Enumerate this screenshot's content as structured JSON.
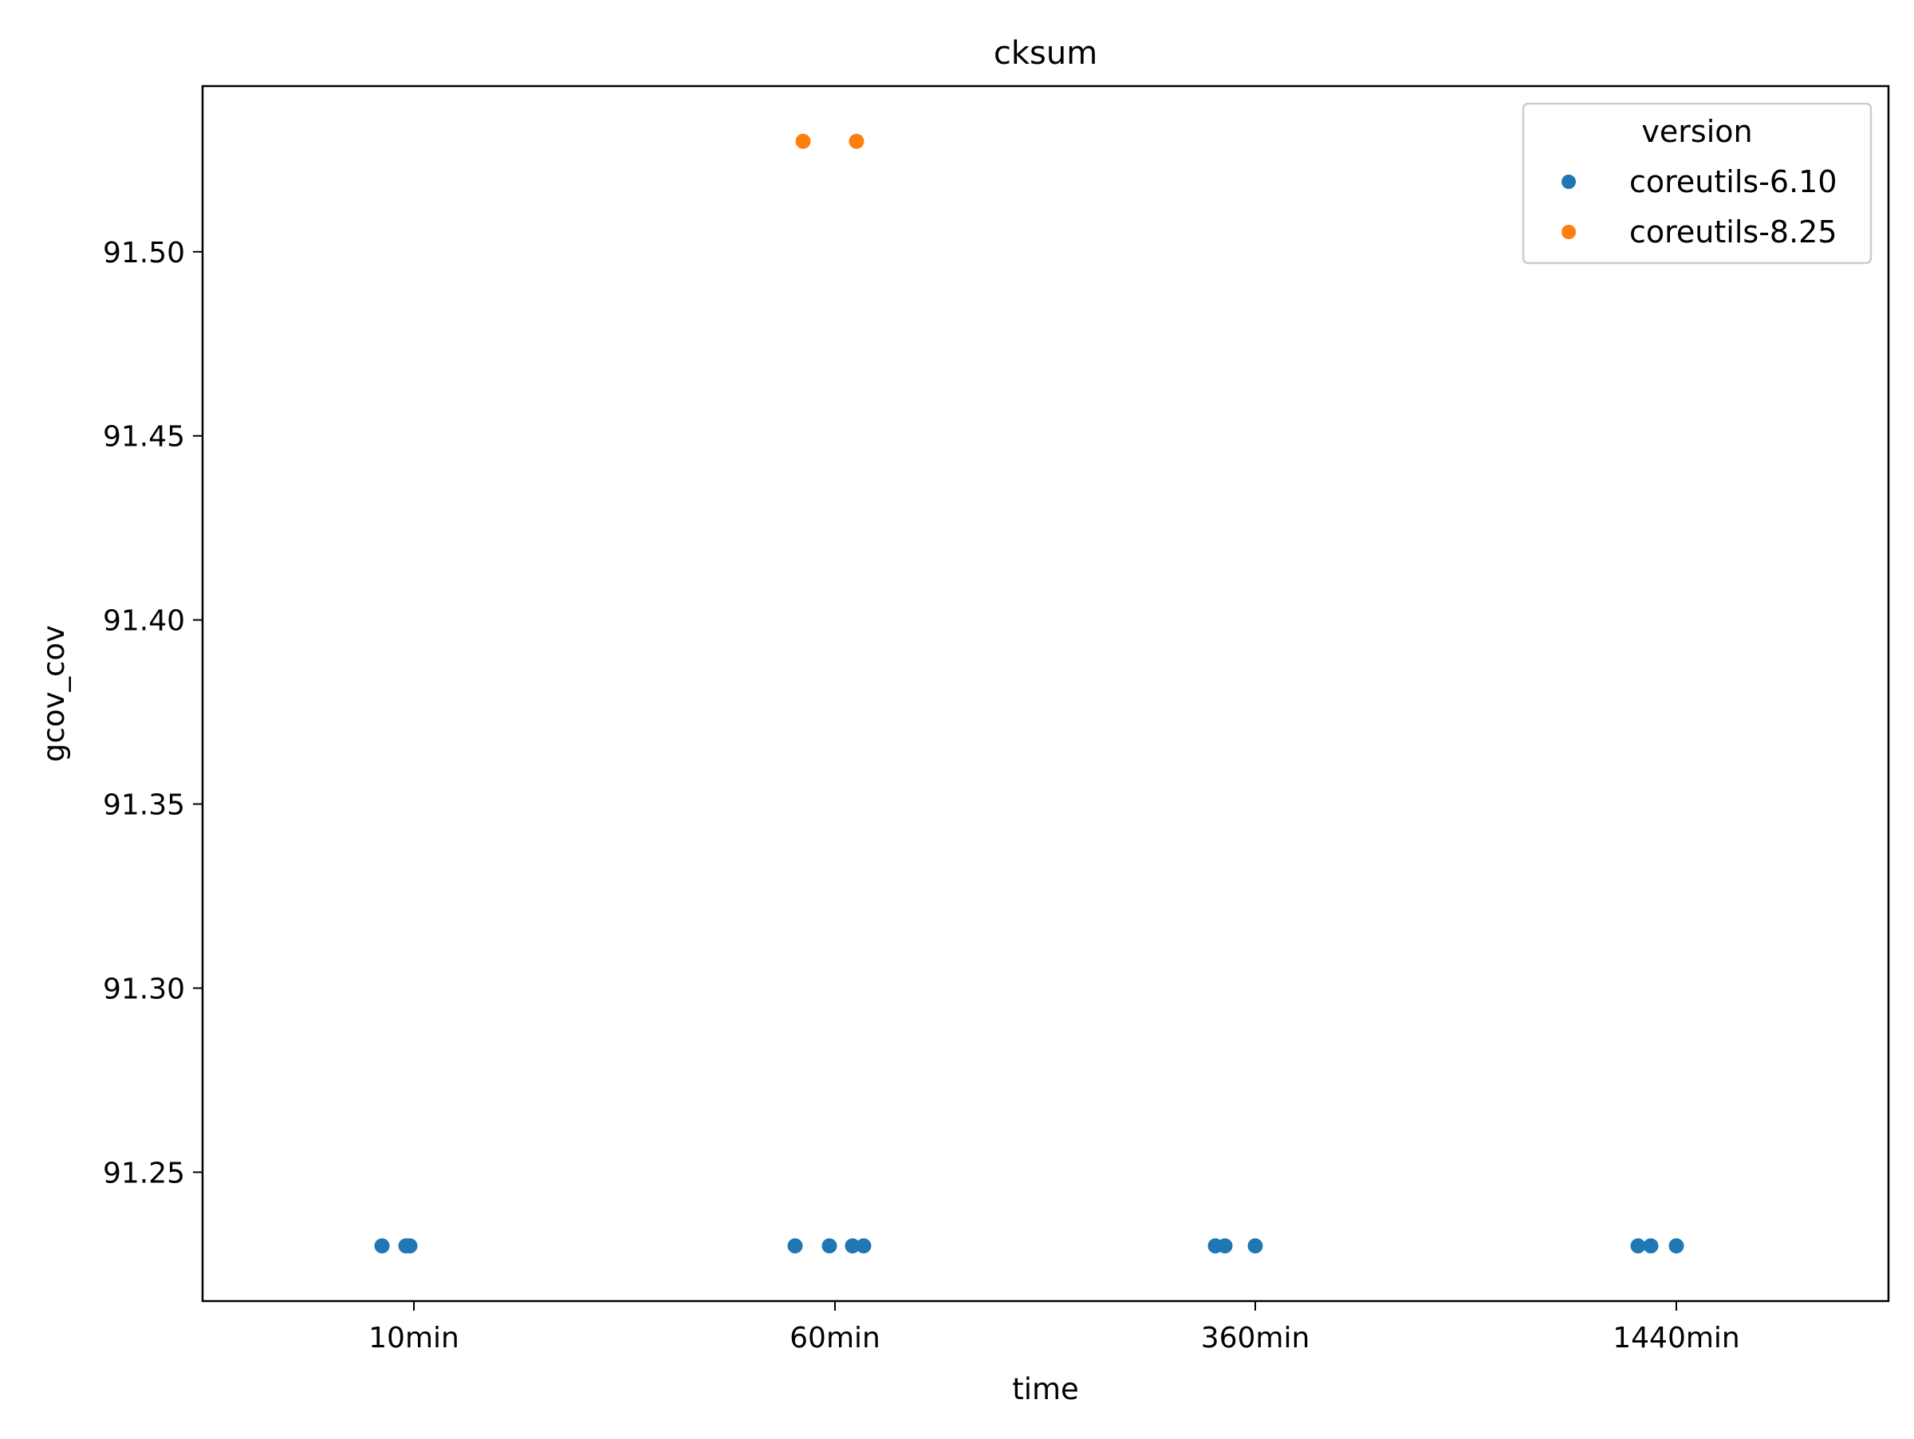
{
  "chart_data": {
    "type": "scatter",
    "title": "cksum",
    "xlabel": "time",
    "ylabel": "gcov_cov",
    "categories": [
      "10min",
      "60min",
      "360min",
      "1440min"
    ],
    "ylim": [
      91.215,
      91.545
    ],
    "yticks": [
      91.25,
      91.3,
      91.35,
      91.4,
      91.45,
      91.5
    ],
    "ytick_labels": [
      "91.25",
      "91.30",
      "91.35",
      "91.40",
      "91.45",
      "91.50"
    ],
    "grid": false,
    "legend": {
      "title": "version",
      "position": "top-right"
    },
    "series": [
      {
        "name": "coreutils-6.10",
        "color": "#1f77b4",
        "points": [
          {
            "x": "10min",
            "y": 91.23
          },
          {
            "x": "10min",
            "y": 91.23
          },
          {
            "x": "10min",
            "y": 91.23
          },
          {
            "x": "60min",
            "y": 91.23
          },
          {
            "x": "60min",
            "y": 91.23
          },
          {
            "x": "60min",
            "y": 91.23
          },
          {
            "x": "60min",
            "y": 91.23
          },
          {
            "x": "360min",
            "y": 91.23
          },
          {
            "x": "360min",
            "y": 91.23
          },
          {
            "x": "360min",
            "y": 91.23
          },
          {
            "x": "1440min",
            "y": 91.23
          },
          {
            "x": "1440min",
            "y": 91.23
          },
          {
            "x": "1440min",
            "y": 91.23
          }
        ]
      },
      {
        "name": "coreutils-8.25",
        "color": "#ff7f0e",
        "points": [
          {
            "x": "60min",
            "y": 91.53
          },
          {
            "x": "60min",
            "y": 91.53
          }
        ]
      }
    ]
  }
}
